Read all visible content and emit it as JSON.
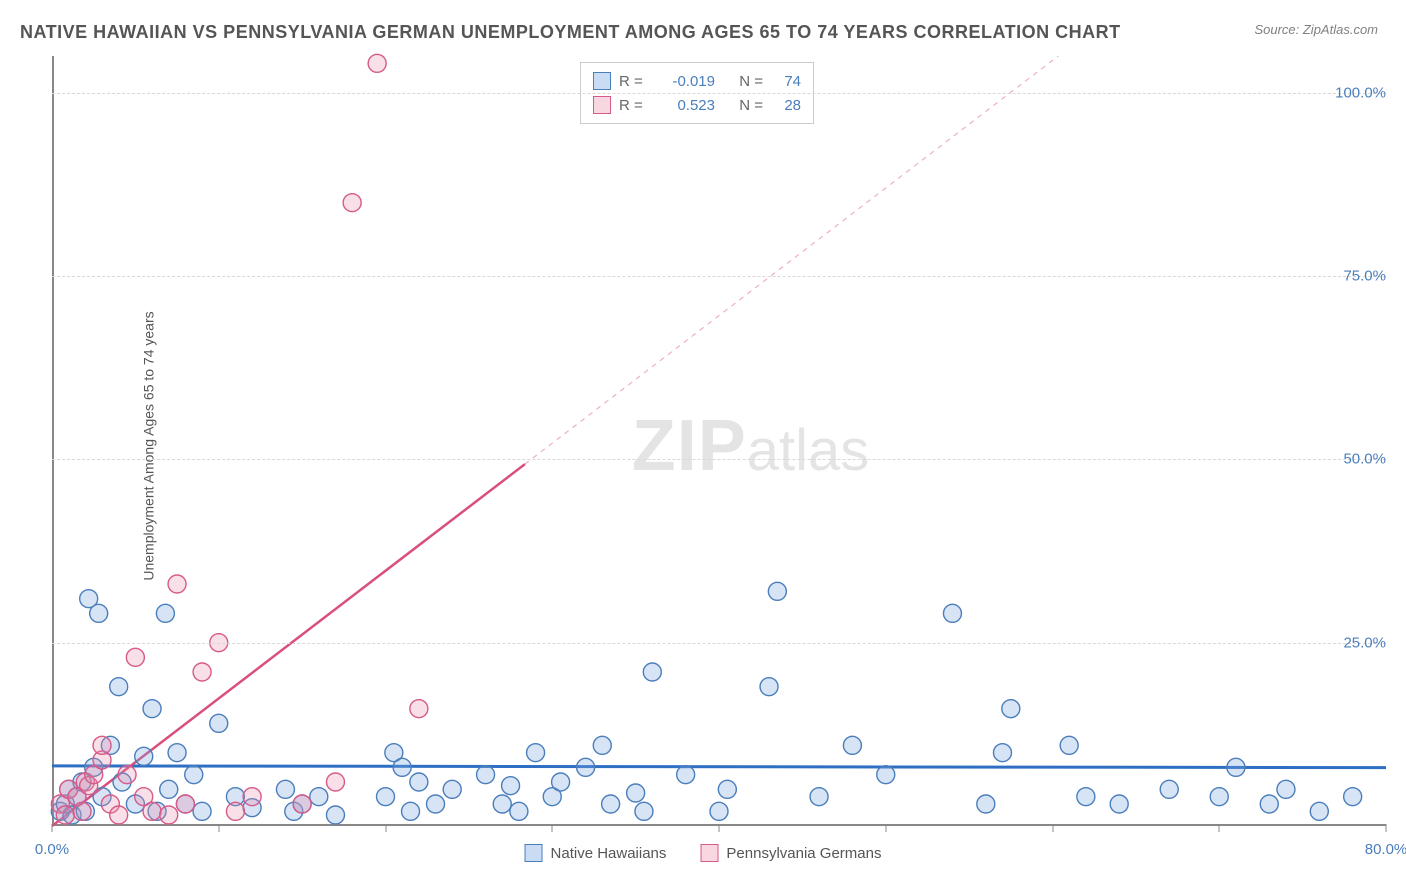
{
  "title": "NATIVE HAWAIIAN VS PENNSYLVANIA GERMAN UNEMPLOYMENT AMONG AGES 65 TO 74 YEARS CORRELATION CHART",
  "source": "Source: ZipAtlas.com",
  "watermark_zip": "ZIP",
  "watermark_atlas": "atlas",
  "y_axis_label": "Unemployment Among Ages 65 to 74 years",
  "chart": {
    "type": "scatter",
    "xlim": [
      0,
      80
    ],
    "ylim": [
      0,
      105
    ],
    "x_ticks": [
      0,
      10,
      20,
      30,
      40,
      50,
      60,
      70,
      80
    ],
    "x_tick_labels": [
      "0.0%",
      "",
      "",
      "",
      "",
      "",
      "",
      "",
      "80.0%"
    ],
    "y_ticks": [
      25,
      50,
      75,
      100
    ],
    "y_tick_labels": [
      "25.0%",
      "50.0%",
      "75.0%",
      "100.0%"
    ],
    "grid_color": "#d8d8d8",
    "background_color": "#ffffff",
    "marker_radius": 9,
    "marker_stroke_width": 1.4,
    "series": [
      {
        "name": "Native Hawaiians",
        "fill_color": "rgba(122,167,224,0.30)",
        "stroke_color": "#4a7ebb",
        "points": [
          [
            0.5,
            2
          ],
          [
            0.8,
            3
          ],
          [
            1,
            5
          ],
          [
            1.2,
            1.5
          ],
          [
            1.5,
            4
          ],
          [
            1.8,
            6
          ],
          [
            2,
            2
          ],
          [
            2.2,
            31
          ],
          [
            2.5,
            8
          ],
          [
            2.8,
            29
          ],
          [
            3,
            4
          ],
          [
            3.5,
            11
          ],
          [
            4,
            19
          ],
          [
            4.2,
            6
          ],
          [
            5,
            3
          ],
          [
            5.5,
            9.5
          ],
          [
            6,
            16
          ],
          [
            6.3,
            2
          ],
          [
            6.8,
            29
          ],
          [
            7,
            5
          ],
          [
            7.5,
            10
          ],
          [
            8,
            3
          ],
          [
            8.5,
            7
          ],
          [
            9,
            2
          ],
          [
            10,
            14
          ],
          [
            11,
            4
          ],
          [
            12,
            2.5
          ],
          [
            14,
            5
          ],
          [
            14.5,
            2
          ],
          [
            15,
            3
          ],
          [
            16,
            4
          ],
          [
            17,
            1.5
          ],
          [
            20,
            4
          ],
          [
            20.5,
            10
          ],
          [
            21,
            8
          ],
          [
            21.5,
            2
          ],
          [
            22,
            6
          ],
          [
            23,
            3
          ],
          [
            24,
            5
          ],
          [
            26,
            7
          ],
          [
            27,
            3
          ],
          [
            27.5,
            5.5
          ],
          [
            28,
            2
          ],
          [
            29,
            10
          ],
          [
            30,
            4
          ],
          [
            30.5,
            6
          ],
          [
            32,
            8
          ],
          [
            33,
            11
          ],
          [
            33.5,
            3
          ],
          [
            35,
            4.5
          ],
          [
            35.5,
            2
          ],
          [
            36,
            21
          ],
          [
            38,
            7
          ],
          [
            40,
            2
          ],
          [
            40.5,
            5
          ],
          [
            43,
            19
          ],
          [
            43.5,
            32
          ],
          [
            46,
            4
          ],
          [
            48,
            11
          ],
          [
            50,
            7
          ],
          [
            54,
            29
          ],
          [
            56,
            3
          ],
          [
            57,
            10
          ],
          [
            57.5,
            16
          ],
          [
            61,
            11
          ],
          [
            62,
            4
          ],
          [
            64,
            3
          ],
          [
            67,
            5
          ],
          [
            70,
            4
          ],
          [
            71,
            8
          ],
          [
            73,
            3
          ],
          [
            74,
            5
          ],
          [
            76,
            2
          ],
          [
            78,
            4
          ]
        ],
        "regression": {
          "slope": -0.003,
          "intercept": 8.2,
          "color": "#2e6fc4",
          "width": 3,
          "dash": "none"
        }
      },
      {
        "name": "Pennsylvania Germans",
        "fill_color": "rgba(235,140,170,0.28)",
        "stroke_color": "#d65a8a",
        "points": [
          [
            0.5,
            3
          ],
          [
            0.8,
            1.5
          ],
          [
            1,
            5
          ],
          [
            1.5,
            4
          ],
          [
            1.8,
            2
          ],
          [
            2,
            6
          ],
          [
            2.2,
            5.5
          ],
          [
            2.5,
            7
          ],
          [
            3,
            9
          ],
          [
            3,
            11
          ],
          [
            3.5,
            3
          ],
          [
            4,
            1.5
          ],
          [
            4.5,
            7
          ],
          [
            5,
            23
          ],
          [
            5.5,
            4
          ],
          [
            6,
            2
          ],
          [
            7,
            1.5
          ],
          [
            7.5,
            33
          ],
          [
            8,
            3
          ],
          [
            9,
            21
          ],
          [
            10,
            25
          ],
          [
            11,
            2
          ],
          [
            12,
            4
          ],
          [
            15,
            3
          ],
          [
            17,
            6
          ],
          [
            19.5,
            104
          ],
          [
            18,
            85
          ],
          [
            22,
            16
          ]
        ],
        "regression": {
          "slope": 1.74,
          "intercept": 0,
          "color": "#d94f7e",
          "width": 2.5,
          "dash": "none",
          "extend_dash": true
        }
      }
    ]
  },
  "stats_legend": {
    "rows": [
      {
        "swatch": "blue",
        "r_label": "R =",
        "r_value": "-0.019",
        "n_label": "N =",
        "n_value": "74"
      },
      {
        "swatch": "pink",
        "r_label": "R =",
        "r_value": "0.523",
        "n_label": "N =",
        "n_value": "28"
      }
    ]
  },
  "bottom_legend": {
    "items": [
      {
        "swatch": "blue",
        "label": "Native Hawaiians"
      },
      {
        "swatch": "pink",
        "label": "Pennsylvania Germans"
      }
    ]
  }
}
